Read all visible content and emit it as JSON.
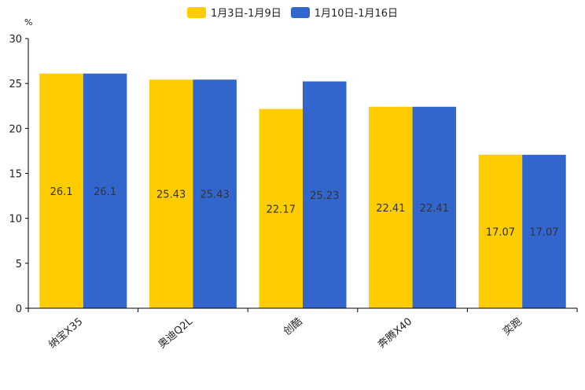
{
  "chart_data": {
    "type": "bar",
    "unit": "%",
    "categories": [
      "纳宝X35",
      "奥迪Q2L",
      "创酷",
      "奔腾X40",
      "奕跑"
    ],
    "series": [
      {
        "name": "1月3日-1月9日",
        "color": "#FFCC00",
        "values": [
          26.1,
          25.43,
          22.17,
          22.41,
          17.07
        ]
      },
      {
        "name": "1月10日-1月16日",
        "color": "#3366CC",
        "values": [
          26.1,
          25.43,
          25.23,
          22.41,
          17.07
        ]
      }
    ],
    "ylim": [
      0,
      30
    ],
    "yticks": [
      0,
      5,
      10,
      15,
      20,
      25,
      30
    ],
    "legend_position": "top-center",
    "grid": false
  }
}
